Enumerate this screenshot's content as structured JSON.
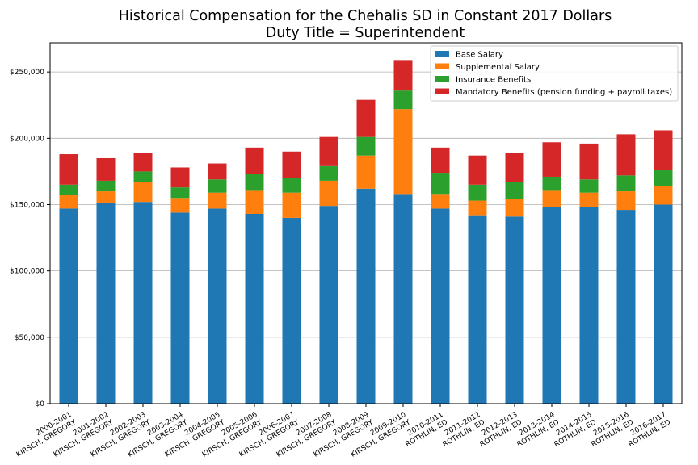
{
  "chart_data": {
    "type": "bar",
    "stacked": true,
    "title": [
      "Historical Compensation for the Chehalis SD in Constant 2017 Dollars",
      "Duty Title = Superintendent"
    ],
    "xlabel": "",
    "ylabel": "",
    "ylim": [
      0,
      272000
    ],
    "yticks": [
      0,
      50000,
      100000,
      150000,
      200000,
      250000
    ],
    "ytick_labels": [
      "$0",
      "$50,000",
      "$100,000",
      "$150,000",
      "$200,000",
      "$250,000"
    ],
    "grid": "horizontal",
    "legend_position": "top-right",
    "categories": [
      [
        "2000-2001",
        "KIRSCH, GREGORY"
      ],
      [
        "2001-2002",
        "KIRSCH, GREGORY"
      ],
      [
        "2002-2003",
        "KIRSCH, GREGORY"
      ],
      [
        "2003-2004",
        "KIRSCH, GREGORY"
      ],
      [
        "2004-2005",
        "KIRSCH, GREGORY"
      ],
      [
        "2005-2006",
        "KIRSCH, GREGORY"
      ],
      [
        "2006-2007",
        "KIRSCH, GREGORY"
      ],
      [
        "2007-2008",
        "KIRSCH, GREGORY"
      ],
      [
        "2008-2009",
        "KIRSCH, GREGORY"
      ],
      [
        "2009-2010",
        "KIRSCH, GREGORY"
      ],
      [
        "2010-2011",
        "ROTHLIN, ED"
      ],
      [
        "2011-2012",
        "ROTHLIN, ED"
      ],
      [
        "2012-2013",
        "ROTHLIN, ED"
      ],
      [
        "2013-2014",
        "ROTHLIN, ED"
      ],
      [
        "2014-2015",
        "ROTHLIN, ED"
      ],
      [
        "2015-2016",
        "ROTHLIN, ED"
      ],
      [
        "2016-2017",
        "ROTHLIN, ED"
      ]
    ],
    "series": [
      {
        "name": "Base Salary",
        "color": "#1f77b4",
        "values": [
          147000,
          151000,
          152000,
          144000,
          147000,
          143000,
          140000,
          149000,
          162000,
          158000,
          147000,
          142000,
          141000,
          148000,
          148000,
          146000,
          150000
        ]
      },
      {
        "name": "Supplemental Salary",
        "color": "#ff7f0e",
        "values": [
          10000,
          9000,
          15000,
          11000,
          12000,
          18000,
          19000,
          19000,
          25000,
          64000,
          11000,
          11000,
          13000,
          13000,
          11000,
          14000,
          14000
        ]
      },
      {
        "name": "Insurance Benefits",
        "color": "#2ca02c",
        "values": [
          8000,
          8000,
          8000,
          8000,
          10000,
          12000,
          11000,
          11000,
          14000,
          14000,
          16000,
          12000,
          13000,
          10000,
          10000,
          12000,
          12000
        ]
      },
      {
        "name": "Mandatory Benefits (pension funding + payroll taxes)",
        "color": "#d62728",
        "values": [
          23000,
          17000,
          14000,
          15000,
          12000,
          20000,
          20000,
          22000,
          28000,
          23000,
          19000,
          22000,
          22000,
          26000,
          27000,
          31000,
          30000
        ]
      }
    ]
  }
}
